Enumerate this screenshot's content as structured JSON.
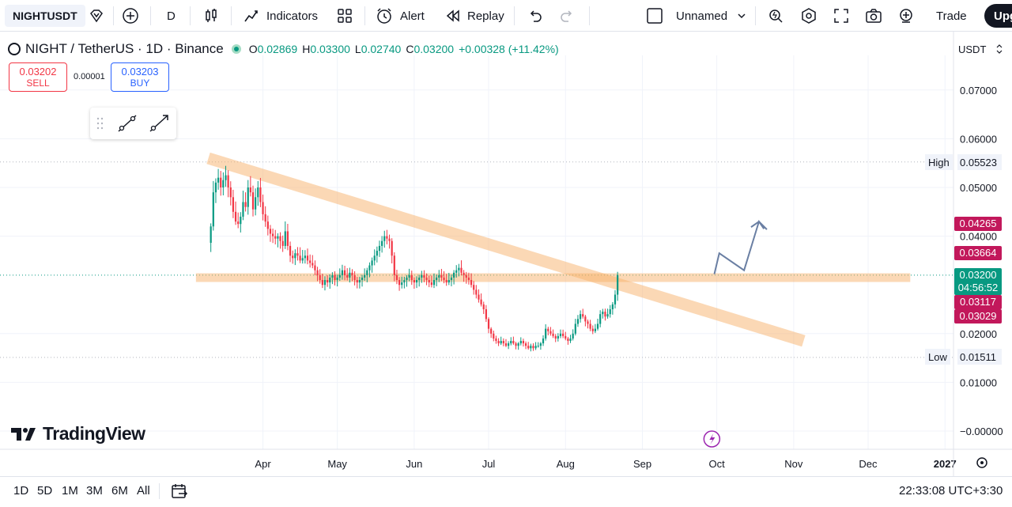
{
  "toolbar": {
    "symbol": "NIGHTUSDT",
    "interval": "D",
    "indicators_label": "Indicators",
    "alert_label": "Alert",
    "replay_label": "Replay",
    "layout_name": "Unnamed",
    "trade_label": "Trade",
    "upgrade_label": "Upg"
  },
  "legend": {
    "title": "NIGHT / TetherUS · 1D · Binance",
    "o_key": "O",
    "o_val": "0.02869",
    "h_key": "H",
    "h_val": "0.03300",
    "l_key": "L",
    "l_val": "0.02740",
    "c_key": "C",
    "c_val": "0.03200",
    "change": "+0.00328 (+11.42%)"
  },
  "order": {
    "sell_price": "0.03202",
    "sell_label": "SELL",
    "spread": "0.00001",
    "buy_price": "0.03203",
    "buy_label": "BUY"
  },
  "price_axis": {
    "currency": "USDT",
    "high_label": "High",
    "high_value": "0.05523",
    "low_label": "Low",
    "low_value": "0.01511",
    "tags": [
      {
        "value": "0.04265",
        "color": "#c2185b"
      },
      {
        "value": "0.03664",
        "color": "#c2185b"
      },
      {
        "value": "0.03200",
        "sub": "04:56:52",
        "color": "#089981"
      },
      {
        "value": "0.03117",
        "color": "#c2185b"
      },
      {
        "value": "0.03029",
        "color": "#c2185b"
      }
    ]
  },
  "chart_data": {
    "type": "candlestick",
    "symbol": "NIGHT / TetherUS",
    "interval": "1D",
    "exchange": "Binance",
    "y_ticks": [
      "0.07000",
      "0.06000",
      "0.05000",
      "0.04000",
      "0.02000",
      "0.01000",
      "−0.00000"
    ],
    "y_tick_values": [
      0.07,
      0.06,
      0.05,
      0.04,
      0.02,
      0.01,
      0.0
    ],
    "x_ticks": [
      "Apr",
      "May",
      "Jun",
      "Jul",
      "Aug",
      "Sep",
      "Oct",
      "Nov",
      "Dec",
      "2027"
    ],
    "ylim": [
      -0.0035,
      0.0785
    ],
    "grid": true,
    "close_series": {
      "start_date": "2026-03-11",
      "values": [
        0.042,
        0.049,
        0.051,
        0.052,
        0.05,
        0.0515,
        0.0525,
        0.05,
        0.048,
        0.045,
        0.043,
        0.0425,
        0.044,
        0.047,
        0.046,
        0.05,
        0.049,
        0.0455,
        0.048,
        0.05,
        0.047,
        0.0445,
        0.043,
        0.0415,
        0.0405,
        0.04,
        0.0395,
        0.04,
        0.039,
        0.038,
        0.041,
        0.038,
        0.036,
        0.0355,
        0.0365,
        0.036,
        0.035,
        0.0355,
        0.036,
        0.035,
        0.0345,
        0.034,
        0.033,
        0.032,
        0.031,
        0.03,
        0.031,
        0.0305,
        0.0315,
        0.032,
        0.031,
        0.0315,
        0.032,
        0.033,
        0.032,
        0.0315,
        0.0325,
        0.032,
        0.031,
        0.0305,
        0.031,
        0.0315,
        0.032,
        0.033,
        0.034,
        0.035,
        0.036,
        0.037,
        0.038,
        0.039,
        0.04,
        0.0395,
        0.039,
        0.036,
        0.032,
        0.031,
        0.03,
        0.0305,
        0.031,
        0.0315,
        0.032,
        0.031,
        0.0305,
        0.031,
        0.0315,
        0.032,
        0.0315,
        0.031,
        0.0305,
        0.03,
        0.031,
        0.0315,
        0.032,
        0.0315,
        0.031,
        0.0305,
        0.031,
        0.0315,
        0.0325,
        0.033,
        0.0335,
        0.0325,
        0.032,
        0.0315,
        0.031,
        0.03,
        0.029,
        0.028,
        0.027,
        0.026,
        0.025,
        0.023,
        0.021,
        0.02,
        0.019,
        0.0185,
        0.018,
        0.0185,
        0.018,
        0.0175,
        0.018,
        0.0185,
        0.018,
        0.0175,
        0.018,
        0.0185,
        0.018,
        0.0175,
        0.017,
        0.0175,
        0.017,
        0.0175,
        0.0175,
        0.018,
        0.019,
        0.021,
        0.0205,
        0.02,
        0.0195,
        0.019,
        0.0195,
        0.02,
        0.0195,
        0.019,
        0.0185,
        0.019,
        0.02,
        0.022,
        0.023,
        0.024,
        0.0235,
        0.0225,
        0.022,
        0.021,
        0.0205,
        0.021,
        0.022,
        0.024,
        0.0245,
        0.0235,
        0.024,
        0.025,
        0.026,
        0.028,
        0.032
      ]
    },
    "annotations": [
      {
        "type": "trend_channel",
        "color": "#f7b26b",
        "from": [
          "2026-03-10",
          0.056
        ],
        "to": [
          "2026-11-05",
          0.0185
        ]
      },
      {
        "type": "horizontal_zone",
        "color": "#f7b26b",
        "from": [
          "2026-03-05",
          0.0315
        ],
        "to": [
          "2026-12-18",
          0.0315
        ]
      },
      {
        "type": "projection_path",
        "color": "#6a7fa3",
        "points": [
          [
            "2026-09-30",
            0.0322
          ],
          [
            "2026-10-02",
            0.0365
          ],
          [
            "2026-10-12",
            0.033
          ],
          [
            "2026-10-18",
            0.043
          ],
          [
            "2026-10-20",
            0.0415
          ]
        ]
      }
    ]
  },
  "bottom": {
    "ranges": [
      "1D",
      "5D",
      "1M",
      "3M",
      "6M",
      "All"
    ],
    "time": "22:33:08 UTC+3:30"
  },
  "brand": {
    "name": "TradingView"
  }
}
